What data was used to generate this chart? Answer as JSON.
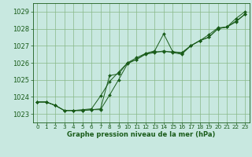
{
  "background_color": "#c8e8e0",
  "plot_bg_color": "#c8e8e0",
  "grid_color": "#88b888",
  "line_color": "#1a5c1a",
  "xlabel": "Graphe pression niveau de la mer (hPa)",
  "ylim": [
    1022.5,
    1029.5
  ],
  "xlim": [
    -0.5,
    23.5
  ],
  "yticks": [
    1023,
    1024,
    1025,
    1026,
    1027,
    1028,
    1029
  ],
  "xticks": [
    0,
    1,
    2,
    3,
    4,
    5,
    6,
    7,
    8,
    9,
    10,
    11,
    12,
    13,
    14,
    15,
    16,
    17,
    18,
    19,
    20,
    21,
    22,
    23
  ],
  "series1": [
    1023.7,
    1023.7,
    1023.5,
    1023.2,
    1023.2,
    1023.2,
    1023.25,
    1023.3,
    1025.25,
    1025.35,
    1026.0,
    1026.2,
    1026.55,
    1026.65,
    1026.65,
    1026.65,
    1026.6,
    1027.0,
    1027.3,
    1027.5,
    1028.0,
    1028.1,
    1028.45,
    1028.85
  ],
  "series2": [
    1023.7,
    1023.7,
    1023.5,
    1023.2,
    1023.2,
    1023.25,
    1023.3,
    1024.05,
    1024.9,
    1025.45,
    1026.0,
    1026.3,
    1026.55,
    1026.7,
    1027.7,
    1026.65,
    1026.55,
    1027.0,
    1027.3,
    1027.65,
    1028.05,
    1028.1,
    1028.6,
    1029.0
  ],
  "series3": [
    1023.7,
    1023.7,
    1023.5,
    1023.2,
    1023.2,
    1023.2,
    1023.25,
    1023.25,
    1024.1,
    1025.0,
    1025.95,
    1026.2,
    1026.5,
    1026.6,
    1026.7,
    1026.6,
    1026.5,
    1027.0,
    1027.3,
    1027.5,
    1028.0,
    1028.1,
    1028.4,
    1028.85
  ],
  "xlabel_fontsize": 6.0,
  "ytick_fontsize": 6.0,
  "xtick_fontsize": 5.2
}
